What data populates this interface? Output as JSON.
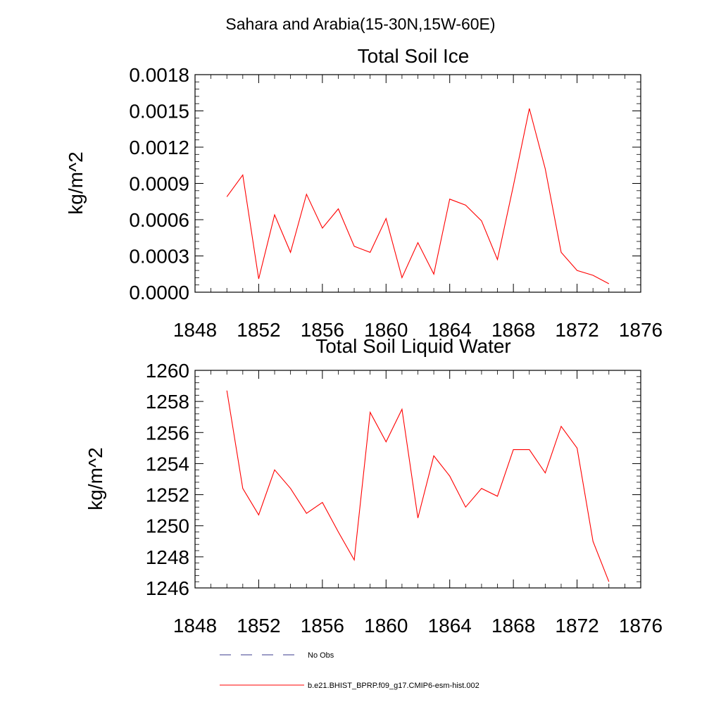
{
  "figure_title": "Sahara and Arabia(15-30N,15W-60E)",
  "colors": {
    "series": "#ff0000",
    "obs": "#3a3a8c",
    "axis": "#000000"
  },
  "chart_data": [
    {
      "type": "line",
      "title": "Total Soil Ice",
      "ylabel": "kg/m^2",
      "xlabel": "",
      "xlim": [
        1848,
        1876
      ],
      "ylim": [
        0.0,
        0.0018
      ],
      "x_ticks": [
        "1848",
        "1852",
        "1856",
        "1860",
        "1864",
        "1868",
        "1872",
        "1876"
      ],
      "y_ticks": [
        "0.0000",
        "0.0003",
        "0.0006",
        "0.0009",
        "0.0012",
        "0.0015",
        "0.0018"
      ],
      "grid": false,
      "series": [
        {
          "name": "b.e21.BHIST_BPRP.f09_g17.CMIP6-esm-hist.002",
          "x": [
            1850,
            1851,
            1852,
            1853,
            1854,
            1855,
            1856,
            1857,
            1858,
            1859,
            1860,
            1861,
            1862,
            1863,
            1864,
            1865,
            1866,
            1867,
            1868,
            1869,
            1870,
            1871,
            1872,
            1873,
            1874
          ],
          "values": [
            0.00079,
            0.00097,
            0.00011,
            0.00064,
            0.00033,
            0.00081,
            0.00053,
            0.00069,
            0.00038,
            0.00033,
            0.00061,
            0.00012,
            0.00041,
            0.00015,
            0.00077,
            0.00072,
            0.00059,
            0.00027,
            0.00088,
            0.00152,
            0.00102,
            0.00033,
            0.00018,
            0.00014,
            7e-05
          ]
        }
      ]
    },
    {
      "type": "line",
      "title": "Total Soil Liquid Water",
      "ylabel": "kg/m^2",
      "xlabel": "",
      "xlim": [
        1848,
        1876
      ],
      "ylim": [
        1246,
        1260
      ],
      "x_ticks": [
        "1848",
        "1852",
        "1856",
        "1860",
        "1864",
        "1868",
        "1872",
        "1876"
      ],
      "y_ticks": [
        "1246",
        "1248",
        "1250",
        "1252",
        "1254",
        "1256",
        "1258",
        "1260"
      ],
      "grid": false,
      "series": [
        {
          "name": "b.e21.BHIST_BPRP.f09_g17.CMIP6-esm-hist.002",
          "x": [
            1850,
            1851,
            1852,
            1853,
            1854,
            1855,
            1856,
            1857,
            1858,
            1859,
            1860,
            1861,
            1862,
            1863,
            1864,
            1865,
            1866,
            1867,
            1868,
            1869,
            1870,
            1871,
            1872,
            1873,
            1874
          ],
          "values": [
            1258.7,
            1252.4,
            1250.7,
            1253.6,
            1252.4,
            1250.8,
            1251.5,
            1249.6,
            1247.8,
            1257.3,
            1255.4,
            1257.5,
            1250.5,
            1254.5,
            1253.2,
            1251.2,
            1252.4,
            1251.9,
            1254.9,
            1254.9,
            1253.4,
            1256.4,
            1255.0,
            1249.0,
            1246.4
          ]
        }
      ]
    }
  ],
  "legend": {
    "placement": "bottom-center",
    "entries": [
      {
        "label": "No Obs",
        "style": "dashed",
        "color": "#3a3a8c"
      },
      {
        "label": "b.e21.BHIST_BPRP.f09_g17.CMIP6-esm-hist.002",
        "style": "solid",
        "color": "#ff0000"
      }
    ]
  }
}
